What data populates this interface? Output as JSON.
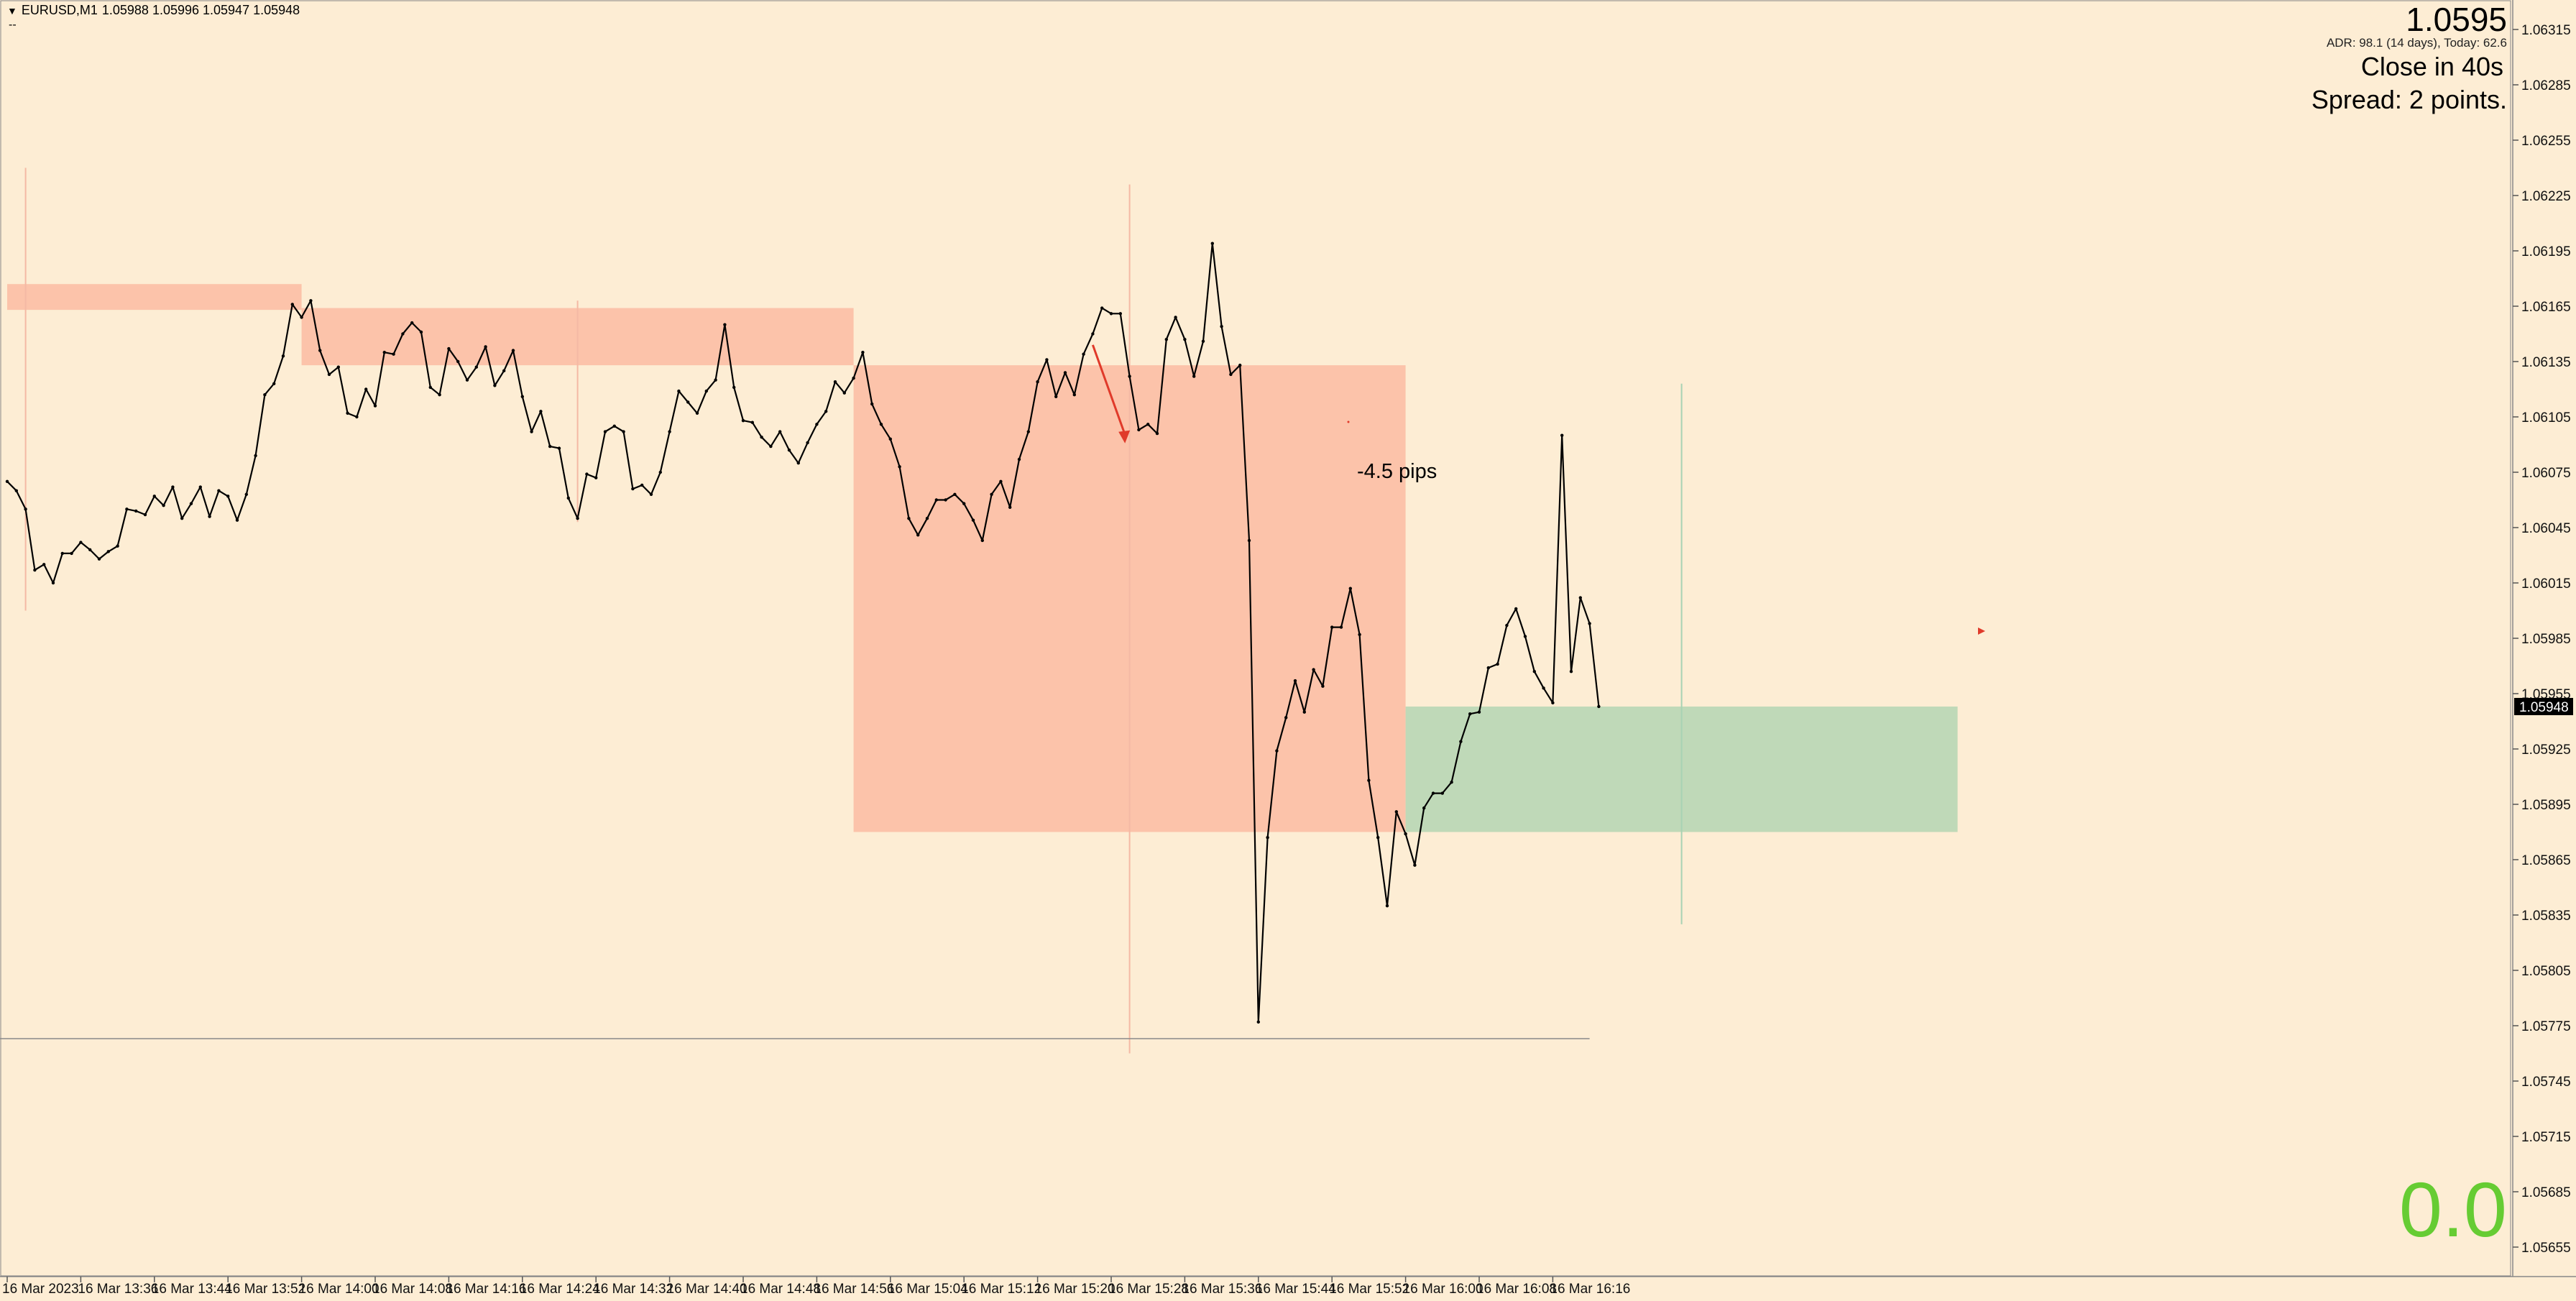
{
  "header": {
    "menu_icon": "triangle-down-icon",
    "symbol_timeframe": "EURUSD,M1",
    "ohlc": "1.05988 1.05996 1.05947 1.05948",
    "sub": "--"
  },
  "info_panel": {
    "big_price": "1.0595",
    "adr": "ADR: 98.1 (14 days), Today: 62.6",
    "close_in": "Close in 40s",
    "spread": "Spread: 2 points."
  },
  "profit_display": {
    "value": "0.0",
    "color": "#66cc33"
  },
  "annotation": {
    "text": "-4.5 pips",
    "color": "#e03a2a"
  },
  "colors": {
    "background": "#fdedd4",
    "line": "#000000",
    "red_zone": "#fcc3aa",
    "green_zone": "#bfd9b8",
    "current_price_bg": "#000000"
  },
  "current_price_label": "1.05948",
  "chart_data": {
    "type": "line",
    "symbol": "EURUSD",
    "timeframe": "M1",
    "y_ticks": [
      "1.06315",
      "1.06285",
      "1.06255",
      "1.06225",
      "1.06195",
      "1.06165",
      "1.06135",
      "1.06105",
      "1.06075",
      "1.06045",
      "1.06015",
      "1.05985",
      "1.05955",
      "1.05925",
      "1.05895",
      "1.05865",
      "1.05835",
      "1.05805",
      "1.05775",
      "1.05745",
      "1.05715",
      "1.05685",
      "1.05655"
    ],
    "x_ticks": [
      "16 Mar 2023",
      "16 Mar 13:36",
      "16 Mar 13:44",
      "16 Mar 13:52",
      "16 Mar 14:00",
      "16 Mar 14:08",
      "16 Mar 14:16",
      "16 Mar 14:24",
      "16 Mar 14:32",
      "16 Mar 14:40",
      "16 Mar 14:48",
      "16 Mar 14:56",
      "16 Mar 15:04",
      "16 Mar 15:12",
      "16 Mar 15:20",
      "16 Mar 15:28",
      "16 Mar 15:36",
      "16 Mar 15:44",
      "16 Mar 15:52",
      "16 Mar 16:00",
      "16 Mar 16:08",
      "16 Mar 16:16"
    ],
    "x_tick_minutes": [
      0,
      8,
      16,
      24,
      32,
      40,
      48,
      56,
      64,
      72,
      80,
      88,
      96,
      104,
      112,
      120,
      128,
      136,
      144,
      152,
      160,
      168
    ],
    "close_prices": [
      1.0607,
      1.06065,
      1.06055,
      1.06022,
      1.06025,
      1.06015,
      1.06031,
      1.06031,
      1.06037,
      1.06033,
      1.06028,
      1.06032,
      1.06035,
      1.06055,
      1.06054,
      1.06052,
      1.06062,
      1.06057,
      1.06067,
      1.0605,
      1.06058,
      1.06067,
      1.06051,
      1.06065,
      1.06062,
      1.06049,
      1.06063,
      1.06084,
      1.06117,
      1.06123,
      1.06138,
      1.06166,
      1.06159,
      1.06168,
      1.06141,
      1.06128,
      1.06132,
      1.06107,
      1.06105,
      1.0612,
      1.06111,
      1.0614,
      1.06139,
      1.0615,
      1.06156,
      1.06151,
      1.06121,
      1.06117,
      1.06142,
      1.06135,
      1.06125,
      1.06132,
      1.06143,
      1.06122,
      1.0613,
      1.06141,
      1.06116,
      1.06097,
      1.06108,
      1.06089,
      1.06088,
      1.06061,
      1.0605,
      1.06074,
      1.06072,
      1.06097,
      1.061,
      1.06097,
      1.06066,
      1.06068,
      1.06063,
      1.06075,
      1.06097,
      1.06119,
      1.06113,
      1.06107,
      1.06119,
      1.06125,
      1.06155,
      1.06121,
      1.06103,
      1.06102,
      1.06094,
      1.06089,
      1.06097,
      1.06087,
      1.0608,
      1.06091,
      1.06101,
      1.06108,
      1.06124,
      1.06118,
      1.06126,
      1.0614,
      1.06112,
      1.06101,
      1.06093,
      1.06078,
      1.0605,
      1.06041,
      1.0605,
      1.0606,
      1.0606,
      1.06063,
      1.06058,
      1.06049,
      1.06038,
      1.06063,
      1.0607,
      1.06056,
      1.06082,
      1.06097,
      1.06124,
      1.06136,
      1.06116,
      1.06129,
      1.06117,
      1.06139,
      1.0615,
      1.06164,
      1.06161,
      1.06161,
      1.06127,
      1.06098,
      1.06101,
      1.06096,
      1.06147,
      1.06159,
      1.06147,
      1.06127,
      1.06146,
      1.06199,
      1.06154,
      1.06128,
      1.06133,
      1.06038,
      1.05777,
      1.05877,
      1.05924,
      1.05942,
      1.05962,
      1.05945,
      1.05968,
      1.05959,
      1.05991,
      1.05991,
      1.06012,
      1.05987,
      1.05908,
      1.05877,
      1.0584,
      1.05891,
      1.05879,
      1.05862,
      1.05893,
      1.05901,
      1.05901,
      1.05907,
      1.05929,
      1.05944,
      1.05945,
      1.05969,
      1.05971,
      1.05992,
      1.06001,
      1.05986,
      1.05967,
      1.05958,
      1.0595,
      1.06095,
      1.05967,
      1.06007,
      1.05993,
      1.05948
    ],
    "red_zones": [
      {
        "start_min": 0,
        "end_min": 32,
        "high": 1.06177,
        "low": 1.06163
      },
      {
        "start_min": 32,
        "end_min": 92,
        "high": 1.06164,
        "low": 1.06133
      },
      {
        "start_min": 92,
        "end_min": 152,
        "high": 1.06133,
        "low": 1.0588
      }
    ],
    "green_zones": [
      {
        "start_min": 152,
        "end_min": 212,
        "high": 1.05948,
        "low": 1.0588
      }
    ],
    "bottom_level": 1.05768,
    "bottom_level_end_min": 172,
    "session_lines": [
      {
        "min": 2,
        "top": 1.0624,
        "bottom": 1.06,
        "color": "#f4b9a4"
      },
      {
        "min": 62,
        "top": 1.06168,
        "bottom": 1.06048,
        "color": "#f4b9a4"
      },
      {
        "min": 122,
        "top": 1.06231,
        "bottom": 1.0576,
        "color": "#f4b9a4"
      },
      {
        "min": 182,
        "top": 1.06123,
        "bottom": 1.0583,
        "color": "#a8d3b4"
      }
    ],
    "arrow": {
      "from_min": 118,
      "from_price": 1.06144,
      "to_min": 121.5,
      "to_price": 1.06093
    },
    "y_range": [
      1.0564,
      1.06333
    ]
  }
}
